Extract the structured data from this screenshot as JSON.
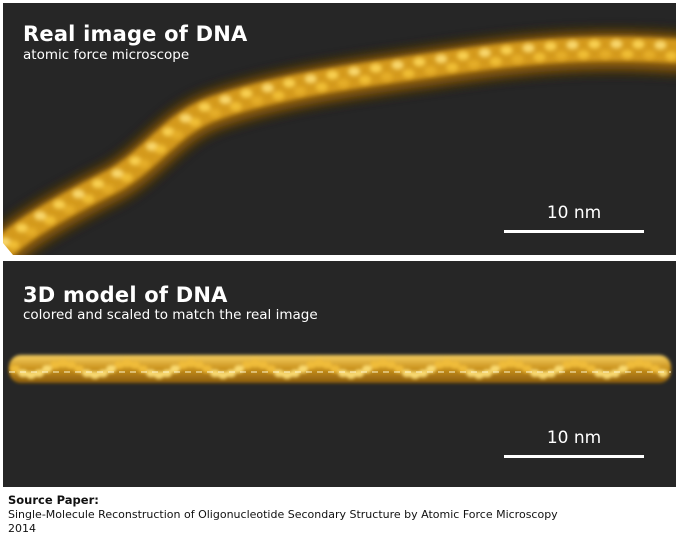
{
  "panels": {
    "real": {
      "title": "Real image of DNA",
      "subtitle": "atomic force microscope",
      "scale_label": "10 nm"
    },
    "model": {
      "title": "3D model of DNA",
      "subtitle": "colored and scaled to match the real image",
      "scale_label": "10 nm"
    }
  },
  "source": {
    "heading": "Source Paper:",
    "line1": "Single-Molecule Reconstruction of Oligonucleotide Secondary Structure by Atomic Force Microscopy",
    "line2": "2014"
  },
  "colors": {
    "panel_background": "#262626",
    "dna_highlight": "#ffe27a",
    "dna_mid": "#d9a520",
    "dna_shadow": "#7a5208"
  }
}
